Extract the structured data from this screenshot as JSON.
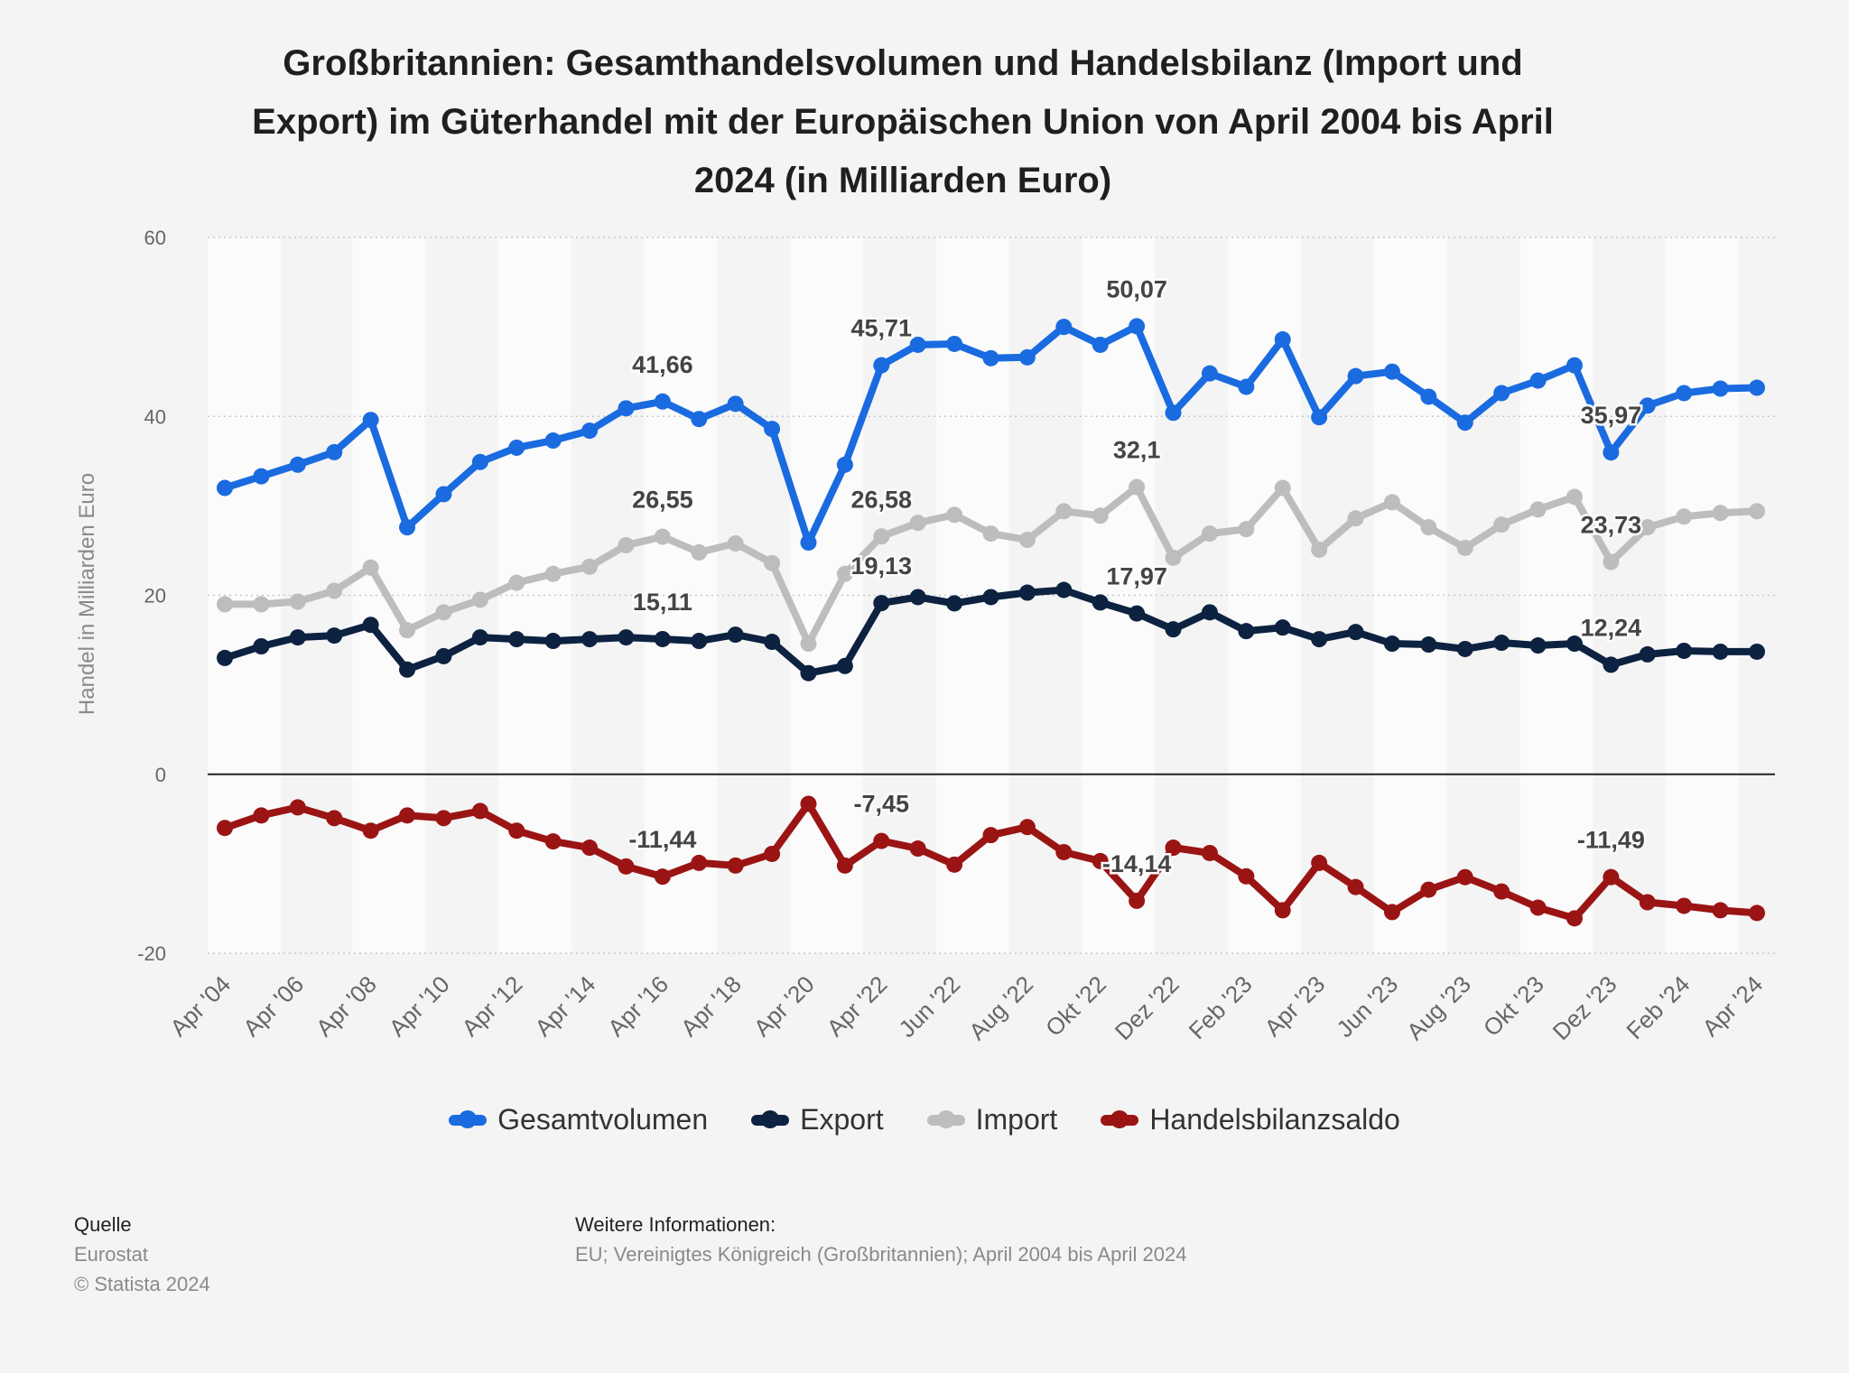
{
  "title": "Großbritannien: Gesamthandelsvolumen und Handelsbilanz (Import und\nExport) im Güterhandel mit der Europäischen Union von April 2004 bis April\n2024 (in Milliarden Euro)",
  "footer": {
    "source_label": "Quelle",
    "source_value": "Eurostat",
    "copyright": "© Statista 2024",
    "info_label": "Weitere Informationen:",
    "info_value": "EU; Vereinigtes Königreich (Großbritannien); April 2004 bis April 2024"
  },
  "chart_data": {
    "type": "line",
    "title": "Großbritannien: Gesamthandelsvolumen und Handelsbilanz (Import und Export) im Güterhandel mit der Europäischen Union von April 2004 bis April 2024 (in Milliarden Euro)",
    "ylabel": "Handel in Milliarden Euro",
    "ylim": [
      -20,
      60
    ],
    "yticks": [
      60,
      40,
      20,
      0,
      -20
    ],
    "grid": true,
    "legend_position": "bottom",
    "x_tick_labels": [
      "Apr '04",
      "Apr '06",
      "Apr '08",
      "Apr '10",
      "Apr '12",
      "Apr '14",
      "Apr '16",
      "Apr '18",
      "Apr '20",
      "Apr '22",
      "Jun '22",
      "Aug '22",
      "Okt '22",
      "Dez '22",
      "Feb '23",
      "Apr '23",
      "Jun '23",
      "Aug '23",
      "Okt '23",
      "Dez '23",
      "Feb '24",
      "Apr '24"
    ],
    "x_tick_positions": [
      0,
      2,
      4,
      6,
      8,
      10,
      12,
      14,
      16,
      18,
      20,
      22,
      24,
      26,
      28,
      30,
      32,
      34,
      36,
      38,
      40,
      42
    ],
    "series": [
      {
        "name": "Gesamtvolumen",
        "color": "#1a6be0",
        "values": [
          32.0,
          33.3,
          34.6,
          36.0,
          39.6,
          27.6,
          31.3,
          34.9,
          36.5,
          37.3,
          38.4,
          40.9,
          41.66,
          39.7,
          41.4,
          38.6,
          25.9,
          34.6,
          45.71,
          48.0,
          48.1,
          46.5,
          46.6,
          50.0,
          48.0,
          50.07,
          40.4,
          44.8,
          43.3,
          48.6,
          39.9,
          44.5,
          45.0,
          42.2,
          39.3,
          42.6,
          44.0,
          45.7,
          35.97,
          41.2,
          42.6,
          43.1,
          43.2
        ],
        "data_labels": [
          {
            "index": 12,
            "text": "41,66"
          },
          {
            "index": 18,
            "text": "45,71"
          },
          {
            "index": 25,
            "text": "50,07"
          },
          {
            "index": 38,
            "text": "35,97"
          }
        ]
      },
      {
        "name": "Export",
        "color": "#0d2240",
        "values": [
          13.0,
          14.3,
          15.3,
          15.5,
          16.7,
          11.7,
          13.2,
          15.3,
          15.1,
          14.9,
          15.1,
          15.3,
          15.11,
          14.9,
          15.6,
          14.8,
          11.3,
          12.1,
          19.13,
          19.8,
          19.1,
          19.8,
          20.3,
          20.6,
          19.2,
          17.97,
          16.2,
          18.1,
          16.0,
          16.4,
          15.1,
          15.9,
          14.6,
          14.5,
          14.0,
          14.7,
          14.4,
          14.6,
          12.24,
          13.4,
          13.8,
          13.7,
          13.7
        ]
      },
      {
        "name": "Import",
        "color": "#bdbdbd",
        "values": [
          19.0,
          19.0,
          19.3,
          20.5,
          23.1,
          16.1,
          18.1,
          19.5,
          21.4,
          22.4,
          23.2,
          25.6,
          26.55,
          24.8,
          25.8,
          23.6,
          14.6,
          22.4,
          26.58,
          28.1,
          29.0,
          26.9,
          26.2,
          29.4,
          28.9,
          32.1,
          24.2,
          26.9,
          27.4,
          32.0,
          25.1,
          28.6,
          30.4,
          27.6,
          25.3,
          27.9,
          29.6,
          31.0,
          23.73,
          27.6,
          28.8,
          29.2,
          29.4
        ]
      },
      {
        "name": "Handelsbilanzsaldo",
        "color": "#9b1414",
        "values": [
          -6.0,
          -4.6,
          -3.7,
          -4.9,
          -6.3,
          -4.6,
          -4.9,
          -4.1,
          -6.3,
          -7.5,
          -8.2,
          -10.3,
          -11.44,
          -9.9,
          -10.2,
          -8.9,
          -3.3,
          -10.2,
          -7.45,
          -8.3,
          -10.1,
          -6.8,
          -5.9,
          -8.7,
          -9.7,
          -14.14,
          -8.2,
          -8.8,
          -11.4,
          -15.2,
          -9.9,
          -12.6,
          -15.4,
          -12.9,
          -11.5,
          -13.1,
          -14.9,
          -16.1,
          -11.49,
          -14.3,
          -14.7,
          -15.2,
          -15.5
        ]
      }
    ],
    "extra_data_labels": [
      {
        "series": "Import",
        "index": 12,
        "text": "26,55"
      },
      {
        "series": "Import",
        "index": 18,
        "text": "26,58"
      },
      {
        "series": "Import",
        "index": 25,
        "text": "32,1"
      },
      {
        "series": "Import",
        "index": 38,
        "text": "23,73"
      },
      {
        "series": "Export",
        "index": 12,
        "text": "15,11"
      },
      {
        "series": "Export",
        "index": 18,
        "text": "19,13"
      },
      {
        "series": "Export",
        "index": 25,
        "text": "17,97"
      },
      {
        "series": "Export",
        "index": 38,
        "text": "12,24"
      },
      {
        "series": "Handelsbilanzsaldo",
        "index": 12,
        "text": "-11,44"
      },
      {
        "series": "Handelsbilanzsaldo",
        "index": 18,
        "text": "-7,45"
      },
      {
        "series": "Handelsbilanzsaldo",
        "index": 25,
        "text": "-14,14"
      },
      {
        "series": "Handelsbilanzsaldo",
        "index": 38,
        "text": "-11,49"
      }
    ]
  }
}
